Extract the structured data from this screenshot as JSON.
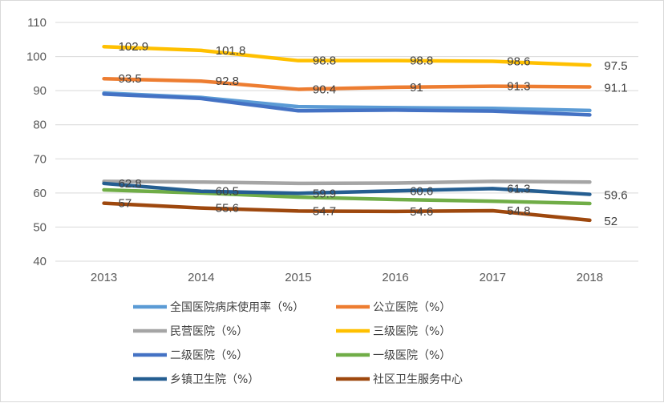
{
  "chart_data": {
    "type": "line",
    "categories": [
      "2013",
      "2014",
      "2015",
      "2016",
      "2017",
      "2018"
    ],
    "ylim": [
      40,
      110
    ],
    "yticks": [
      40,
      50,
      60,
      70,
      80,
      90,
      100,
      110
    ],
    "grid": true,
    "legend_position": "bottom",
    "series": [
      {
        "name": "全国医院病床使用率（%）",
        "color": "#5b9bd5",
        "values": [
          89.3,
          88.0,
          85.3,
          85.0,
          84.8,
          84.2
        ],
        "labels": false
      },
      {
        "name": "公立医院（%）",
        "color": "#ed7d31",
        "values": [
          93.5,
          92.8,
          90.4,
          91,
          91.3,
          91.1
        ],
        "labels": true
      },
      {
        "name": "民营医院（%）",
        "color": "#a5a5a5",
        "values": [
          63.4,
          63.2,
          62.8,
          62.9,
          63.4,
          63.2
        ],
        "labels": false
      },
      {
        "name": "三级医院（%）",
        "color": "#ffc000",
        "values": [
          102.9,
          101.8,
          98.8,
          98.8,
          98.6,
          97.5
        ],
        "labels": true
      },
      {
        "name": "二级医院（%）",
        "color": "#4472c4",
        "values": [
          89.0,
          87.7,
          84.1,
          84.3,
          84.0,
          82.9
        ],
        "labels": false
      },
      {
        "name": "一级医院（%）",
        "color": "#70ad47",
        "values": [
          60.9,
          60.0,
          58.8,
          58.1,
          57.6,
          56.9
        ],
        "labels": false
      },
      {
        "name": "乡镇卫生院（%）",
        "color": "#255e91",
        "values": [
          62.8,
          60.5,
          59.9,
          60.6,
          61.3,
          59.6
        ],
        "labels": true
      },
      {
        "name": "社区卫生服务中心",
        "color": "#9e480e",
        "values": [
          57,
          55.6,
          54.7,
          54.6,
          54.8,
          52
        ],
        "labels": true
      }
    ]
  }
}
